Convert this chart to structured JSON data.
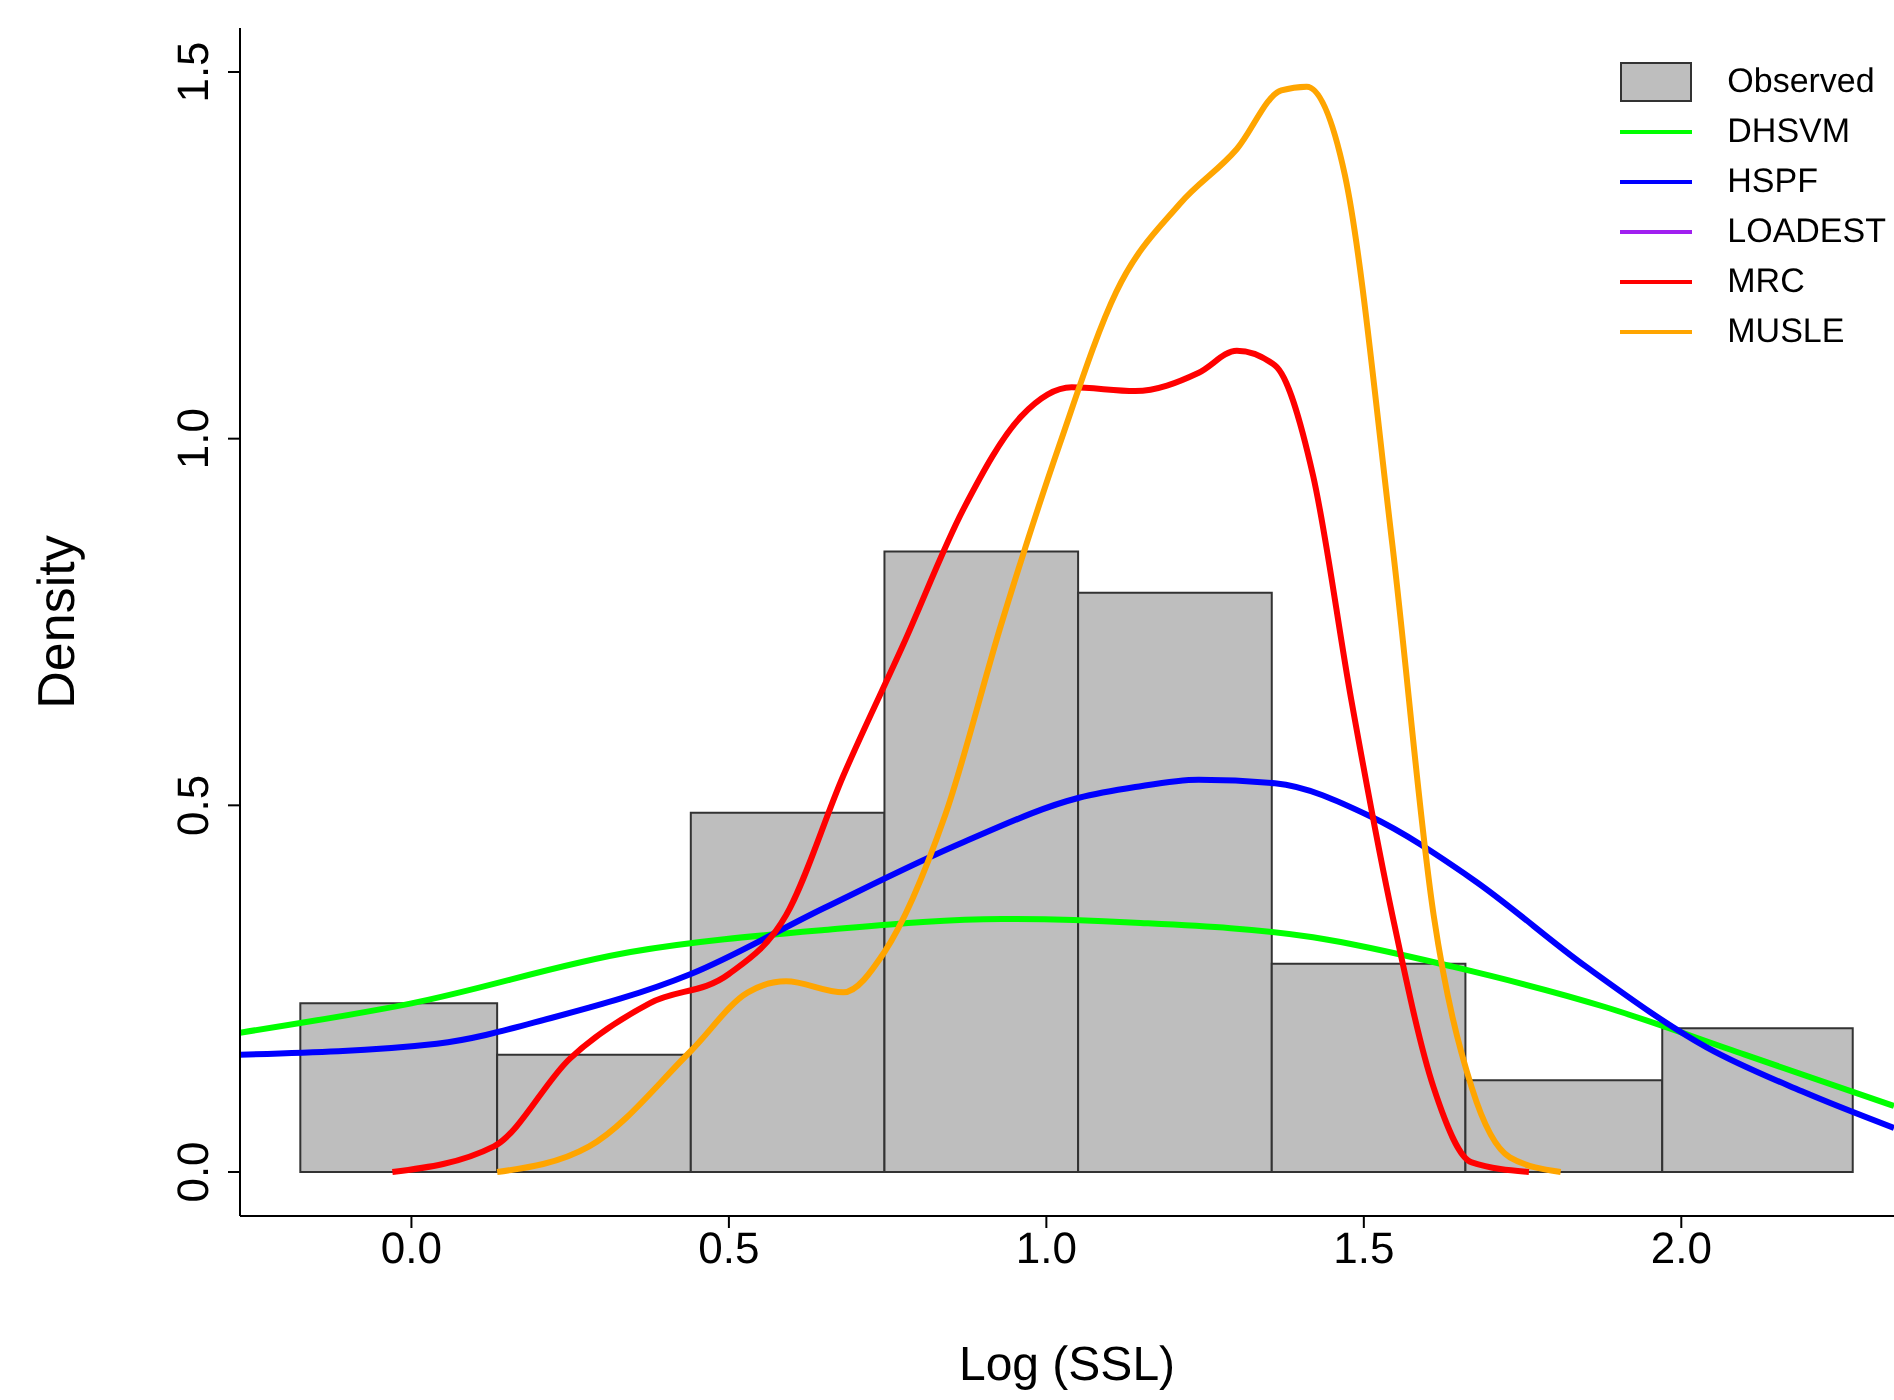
{
  "chart_data": {
    "type": "histogram",
    "xlabel": "Log (SSL)",
    "ylabel": "Density",
    "series": [
      {
        "name": "Observed",
        "color": "#bebebe",
        "bins": [
          -0.175,
          0.135,
          0.44,
          0.745,
          1.05,
          1.355,
          1.66,
          1.97,
          2.27
        ],
        "values": [
          0.23,
          0.16,
          0.49,
          0.846,
          0.79,
          0.284,
          0.125,
          0.196
        ]
      },
      {
        "name": "DHSVM",
        "type": "line",
        "color": "#00ff00",
        "x": [
          -0.27,
          0,
          0.345,
          0.65,
          0.93,
          1.14,
          1.42,
          1.64,
          1.88,
          2.1,
          2.335
        ],
        "values": [
          0.19,
          0.23,
          0.3,
          0.33,
          0.345,
          0.34,
          0.32,
          0.28,
          0.225,
          0.16,
          0.09
        ]
      },
      {
        "name": "HSPF",
        "type": "line",
        "color": "#0000ff",
        "x": [
          -0.27,
          0.04,
          0.22,
          0.44,
          0.65,
          0.87,
          1.05,
          1.14,
          1.24,
          1.36,
          1.51,
          1.67,
          1.85,
          2.04,
          2.19,
          2.335
        ],
        "values": [
          0.16,
          0.175,
          0.21,
          0.27,
          0.36,
          0.45,
          0.51,
          0.525,
          0.535,
          0.53,
          0.485,
          0.4,
          0.28,
          0.17,
          0.11,
          0.06
        ]
      },
      {
        "name": "LOADEST",
        "type": "line",
        "color": "#a020f0"
      },
      {
        "name": "MRC",
        "type": "line",
        "color": "#ff0000",
        "x": [
          -0.03,
          0.13,
          0.25,
          0.375,
          0.5,
          0.59,
          0.68,
          0.775,
          0.87,
          0.96,
          1.04,
          1.14,
          1.24,
          1.3,
          1.36,
          1.42,
          1.48,
          1.545,
          1.61,
          1.67,
          1.76
        ],
        "values": [
          0,
          0.035,
          0.155,
          0.23,
          0.27,
          0.35,
          0.54,
          0.72,
          0.905,
          1.03,
          1.07,
          1.065,
          1.09,
          1.12,
          1.1,
          0.95,
          0.645,
          0.35,
          0.115,
          0.013,
          0
        ]
      },
      {
        "name": "MUSLE",
        "type": "line",
        "color": "#ffa500",
        "x": [
          0.135,
          0.28,
          0.44,
          0.53,
          0.59,
          0.68,
          0.745,
          0.84,
          0.93,
          1.02,
          1.11,
          1.21,
          1.3,
          1.37,
          1.41,
          1.47,
          1.545,
          1.61,
          1.67,
          1.73,
          1.81
        ],
        "values": [
          0,
          0.035,
          0.165,
          0.245,
          0.26,
          0.245,
          0.3,
          0.485,
          0.75,
          0.99,
          1.2,
          1.32,
          1.395,
          1.475,
          1.48,
          1.36,
          0.855,
          0.35,
          0.115,
          0.02,
          0
        ]
      }
    ],
    "xlim": [
      -0.27,
      2.335
    ],
    "xticks": [
      {
        "value": 0,
        "label": "0.0"
      },
      0.5,
      {
        "value": 1,
        "label": "1.0"
      },
      1.5,
      {
        "value": 2,
        "label": "2.0"
      }
    ],
    "ylim": [
      -0.06,
      1.56
    ],
    "yticks": [
      {
        "value": 0,
        "label": "0.0"
      },
      0.5,
      {
        "value": 1,
        "label": "1.0"
      },
      1.5
    ],
    "legend": "top right",
    "grid": false
  }
}
